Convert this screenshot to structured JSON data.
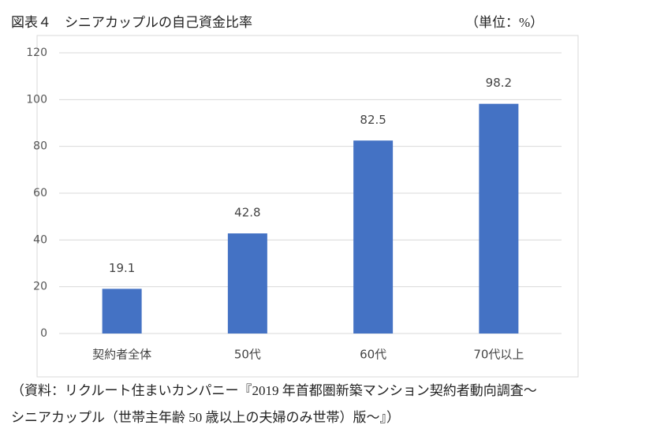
{
  "chart_data": {
    "type": "bar",
    "title": "図表４　シニアカップルの自己資金比率",
    "unit_label": "（単位：%）",
    "categories": [
      "契約者全体",
      "50代",
      "60代",
      "70代以上"
    ],
    "values": [
      19.1,
      42.8,
      82.5,
      98.2
    ],
    "color": "#4472c4",
    "ylim": [
      0,
      120
    ],
    "yticks": [
      0,
      20,
      40,
      60,
      80,
      100,
      120
    ],
    "grid": true,
    "source": [
      "（資料：リクルート住まいカンパニー『2019 年首都圏新築マンション契約者動向調査～",
      "シニアカップル（世帯主年齢 50 歳以上の夫婦のみ世帯）版～』）"
    ]
  }
}
